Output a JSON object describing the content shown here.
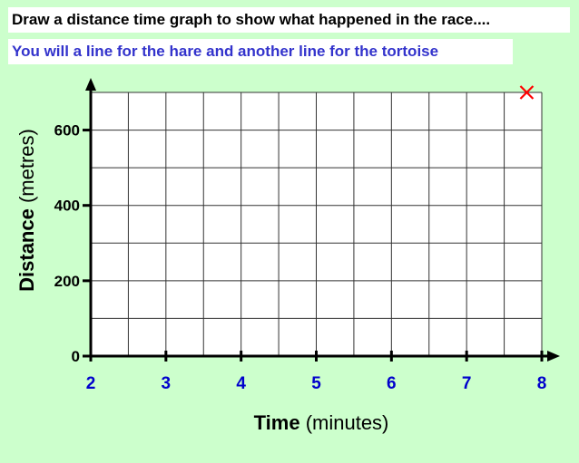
{
  "header": {
    "title": "Draw a distance time graph to show what happened in the race....",
    "subtitle": "You will a line for the hare and another line for the tortoise"
  },
  "colors": {
    "background": "#ccffcc",
    "subtitle_text": "#3333cc",
    "x_tick_text": "#0000cc",
    "marker": "#ff0000"
  },
  "chart_data": {
    "type": "line",
    "xlabel": {
      "bold": "Time",
      "rest": " (minutes)"
    },
    "ylabel": {
      "bold": "Distance",
      "rest": " (metres)"
    },
    "xlim": [
      2,
      8
    ],
    "ylim": [
      0,
      700
    ],
    "x_ticks": [
      2,
      3,
      4,
      5,
      6,
      7,
      8
    ],
    "y_ticks": [
      0,
      200,
      400,
      600
    ],
    "grid": true,
    "grid_minor_step": {
      "x": 0.5,
      "y": 100
    },
    "series": [],
    "markers": [
      {
        "x": 7.8,
        "y": 700,
        "symbol": "cross",
        "color": "#ff0000"
      }
    ]
  }
}
